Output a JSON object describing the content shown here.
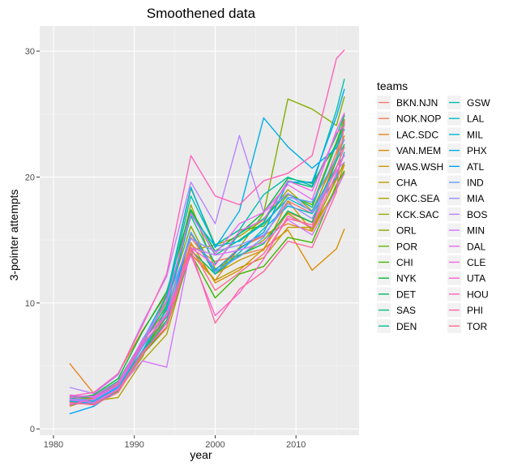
{
  "chart_data": {
    "type": "line",
    "title": "Smoothened data",
    "xlabel": "year",
    "ylabel": "3-pointer attempts",
    "xlim": [
      1978.3,
      2017.8
    ],
    "ylim": [
      -0.5,
      32.0
    ],
    "xticks": [
      1980,
      1990,
      2000,
      2010
    ],
    "yticks": [
      0,
      10,
      20,
      30
    ],
    "grid": true,
    "legend_title": "teams",
    "legend_position": "right",
    "x": [
      1982,
      1985,
      1988,
      1991,
      1994,
      1997,
      2000,
      2003,
      2006,
      2009,
      2012,
      2015,
      2016
    ],
    "series": [
      {
        "name": "BKN.NJN",
        "color": "#F8766D",
        "values": [
          2.5,
          2.2,
          3.3,
          6.6,
          8.6,
          15.2,
          12.6,
          14.4,
          15.3,
          18.1,
          17.1,
          22.0,
          25.0
        ]
      },
      {
        "name": "NOK.NOP",
        "color": "#F17D51",
        "values": [
          2.1,
          2.5,
          3.6,
          6.0,
          9.1,
          14.6,
          13.3,
          13.8,
          14.3,
          17.2,
          16.4,
          21.6,
          24.3
        ]
      },
      {
        "name": "LAC.SDC",
        "color": "#E7851E",
        "values": [
          5.2,
          2.8,
          4.4,
          7.8,
          10.7,
          14.2,
          11.8,
          14.4,
          15.4,
          16.3,
          15.7,
          20.0,
          21.0
        ]
      },
      {
        "name": "VAN.MEM",
        "color": "#DB8E00",
        "values": [
          1.8,
          2.4,
          3.0,
          5.9,
          8.0,
          14.8,
          11.6,
          12.6,
          14.3,
          15.8,
          12.6,
          14.3,
          15.9
        ]
      },
      {
        "name": "WAS.WSH",
        "color": "#CD9600",
        "values": [
          2.6,
          2.4,
          3.8,
          7.0,
          9.4,
          15.5,
          12.3,
          13.4,
          14.2,
          18.1,
          15.7,
          19.2,
          21.0
        ]
      },
      {
        "name": "CHA",
        "color": "#BE9C00",
        "values": [
          2.2,
          2.0,
          3.1,
          6.2,
          8.6,
          13.9,
          11.8,
          12.8,
          13.6,
          16.0,
          16.0,
          19.0,
          20.4
        ]
      },
      {
        "name": "OKC.SEA",
        "color": "#AEA200",
        "values": [
          2.4,
          2.2,
          2.5,
          5.4,
          7.5,
          14.2,
          14.6,
          15.3,
          16.6,
          19.0,
          17.3,
          21.6,
          23.3
        ]
      },
      {
        "name": "KCK.SAC",
        "color": "#9AA800",
        "values": [
          2.2,
          2.0,
          3.1,
          5.7,
          9.7,
          17.8,
          12.7,
          13.7,
          15.0,
          17.1,
          15.9,
          19.8,
          21.2
        ]
      },
      {
        "name": "ORL",
        "color": "#84AD00",
        "values": [
          2.6,
          2.3,
          3.5,
          7.1,
          10.0,
          16.1,
          12.3,
          14.4,
          17.1,
          26.2,
          25.4,
          24.1,
          26.4
        ]
      },
      {
        "name": "POR",
        "color": "#68B100",
        "values": [
          2.2,
          2.0,
          3.0,
          6.6,
          10.5,
          19.1,
          14.6,
          15.8,
          16.1,
          18.6,
          17.8,
          22.8,
          24.6
        ]
      },
      {
        "name": "CHI",
        "color": "#3DB600",
        "values": [
          1.9,
          2.3,
          3.4,
          5.9,
          8.1,
          13.9,
          10.4,
          12.3,
          12.9,
          15.2,
          14.8,
          19.4,
          20.5
        ]
      },
      {
        "name": "NYK",
        "color": "#00BA38",
        "values": [
          2.4,
          2.7,
          4.0,
          7.7,
          10.9,
          17.4,
          14.1,
          15.5,
          17.2,
          19.9,
          19.5,
          22.6,
          24.2
        ]
      },
      {
        "name": "DET",
        "color": "#00BD5F",
        "values": [
          2.3,
          2.1,
          3.3,
          6.2,
          8.9,
          14.2,
          12.3,
          13.8,
          14.7,
          17.3,
          16.4,
          21.3,
          22.6
        ]
      },
      {
        "name": "SAS",
        "color": "#00BF7D",
        "values": [
          2.5,
          2.5,
          3.7,
          6.8,
          9.8,
          17.2,
          13.8,
          15.0,
          16.4,
          19.7,
          19.2,
          23.3,
          24.9
        ]
      },
      {
        "name": "DEN",
        "color": "#00C097",
        "values": [
          2.6,
          2.6,
          3.8,
          7.0,
          9.7,
          16.9,
          13.1,
          15.5,
          16.7,
          18.7,
          17.6,
          22.6,
          24.3
        ]
      },
      {
        "name": "GSW",
        "color": "#00C0AF",
        "values": [
          2.1,
          2.3,
          3.5,
          6.8,
          10.2,
          18.5,
          14.6,
          15.8,
          18.6,
          20.0,
          19.3,
          25.3,
          27.8
        ]
      },
      {
        "name": "LAL",
        "color": "#00BCC4",
        "values": [
          2.2,
          2.0,
          3.1,
          5.9,
          8.6,
          15.6,
          12.3,
          14.0,
          15.9,
          17.7,
          17.1,
          20.0,
          22.0
        ]
      },
      {
        "name": "MIL",
        "color": "#00B8D7",
        "values": [
          1.9,
          2.2,
          3.3,
          6.2,
          9.5,
          17.0,
          14.5,
          14.9,
          16.3,
          18.3,
          17.3,
          20.8,
          21.7
        ]
      },
      {
        "name": "PHX",
        "color": "#00B0E8",
        "values": [
          2.1,
          2.1,
          3.4,
          7.0,
          10.6,
          19.2,
          14.4,
          17.3,
          24.7,
          22.4,
          20.7,
          22.3,
          23.8
        ]
      },
      {
        "name": "ATL",
        "color": "#00A6F6",
        "values": [
          1.2,
          1.8,
          3.1,
          6.1,
          8.4,
          15.6,
          12.6,
          14.3,
          15.6,
          19.6,
          19.6,
          24.8,
          27.0
        ]
      },
      {
        "name": "IND",
        "color": "#619CFF",
        "values": [
          2.3,
          2.3,
          3.4,
          6.5,
          9.2,
          15.6,
          12.5,
          13.7,
          15.2,
          18.4,
          18.0,
          21.5,
          23.0
        ]
      },
      {
        "name": "MIA",
        "color": "#9590FF",
        "values": [
          2.4,
          2.3,
          3.5,
          7.1,
          10.1,
          15.1,
          14.1,
          14.6,
          15.4,
          17.9,
          16.7,
          20.7,
          22.4
        ]
      },
      {
        "name": "BOS",
        "color": "#B983FF",
        "values": [
          3.3,
          2.8,
          4.3,
          8.4,
          12.1,
          19.6,
          16.3,
          23.3,
          17.2,
          18.7,
          17.2,
          20.5,
          21.2
        ]
      },
      {
        "name": "MIN",
        "color": "#D376FF",
        "values": [
          2.3,
          2.1,
          3.2,
          5.4,
          4.9,
          14.4,
          13.8,
          14.2,
          14.8,
          16.6,
          15.4,
          19.0,
          20.3
        ]
      },
      {
        "name": "DAL",
        "color": "#E76BF3",
        "values": [
          2.7,
          2.5,
          3.5,
          6.8,
          10.2,
          17.1,
          13.9,
          16.3,
          17.2,
          19.4,
          18.2,
          23.7,
          25.1
        ]
      },
      {
        "name": "CLE",
        "color": "#F564E3",
        "values": [
          2.5,
          2.6,
          3.7,
          7.0,
          9.1,
          14.4,
          13.0,
          15.7,
          16.6,
          19.7,
          18.9,
          23.5,
          24.1
        ]
      },
      {
        "name": "UTA",
        "color": "#FD61D1",
        "values": [
          1.9,
          2.4,
          3.5,
          6.7,
          9.0,
          13.8,
          9.0,
          10.8,
          13.5,
          16.9,
          16.0,
          20.3,
          21.8
        ]
      },
      {
        "name": "HOU",
        "color": "#FF62BC",
        "values": [
          2.6,
          2.9,
          4.4,
          8.2,
          12.3,
          21.7,
          18.5,
          17.8,
          19.7,
          20.3,
          21.7,
          29.4,
          30.1
        ]
      },
      {
        "name": "PHI",
        "color": "#FF67A4",
        "values": [
          2.0,
          2.0,
          3.1,
          6.1,
          8.1,
          14.2,
          8.4,
          11.1,
          12.5,
          14.9,
          14.4,
          18.8,
          24.5
        ]
      },
      {
        "name": "TOR",
        "color": "#FF6C91",
        "values": [
          2.1,
          1.9,
          2.9,
          5.9,
          8.4,
          14.4,
          11.0,
          12.4,
          13.9,
          16.7,
          16.2,
          20.8,
          22.4
        ]
      }
    ]
  }
}
